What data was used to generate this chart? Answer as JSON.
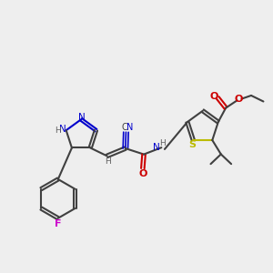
{
  "bg_color": "#eeeeee",
  "bond_color": "#404040",
  "colors": {
    "N": "#0000cc",
    "O": "#cc0000",
    "S": "#bbbb00",
    "F": "#cc00cc",
    "H": "#606060",
    "C": "#404040"
  }
}
